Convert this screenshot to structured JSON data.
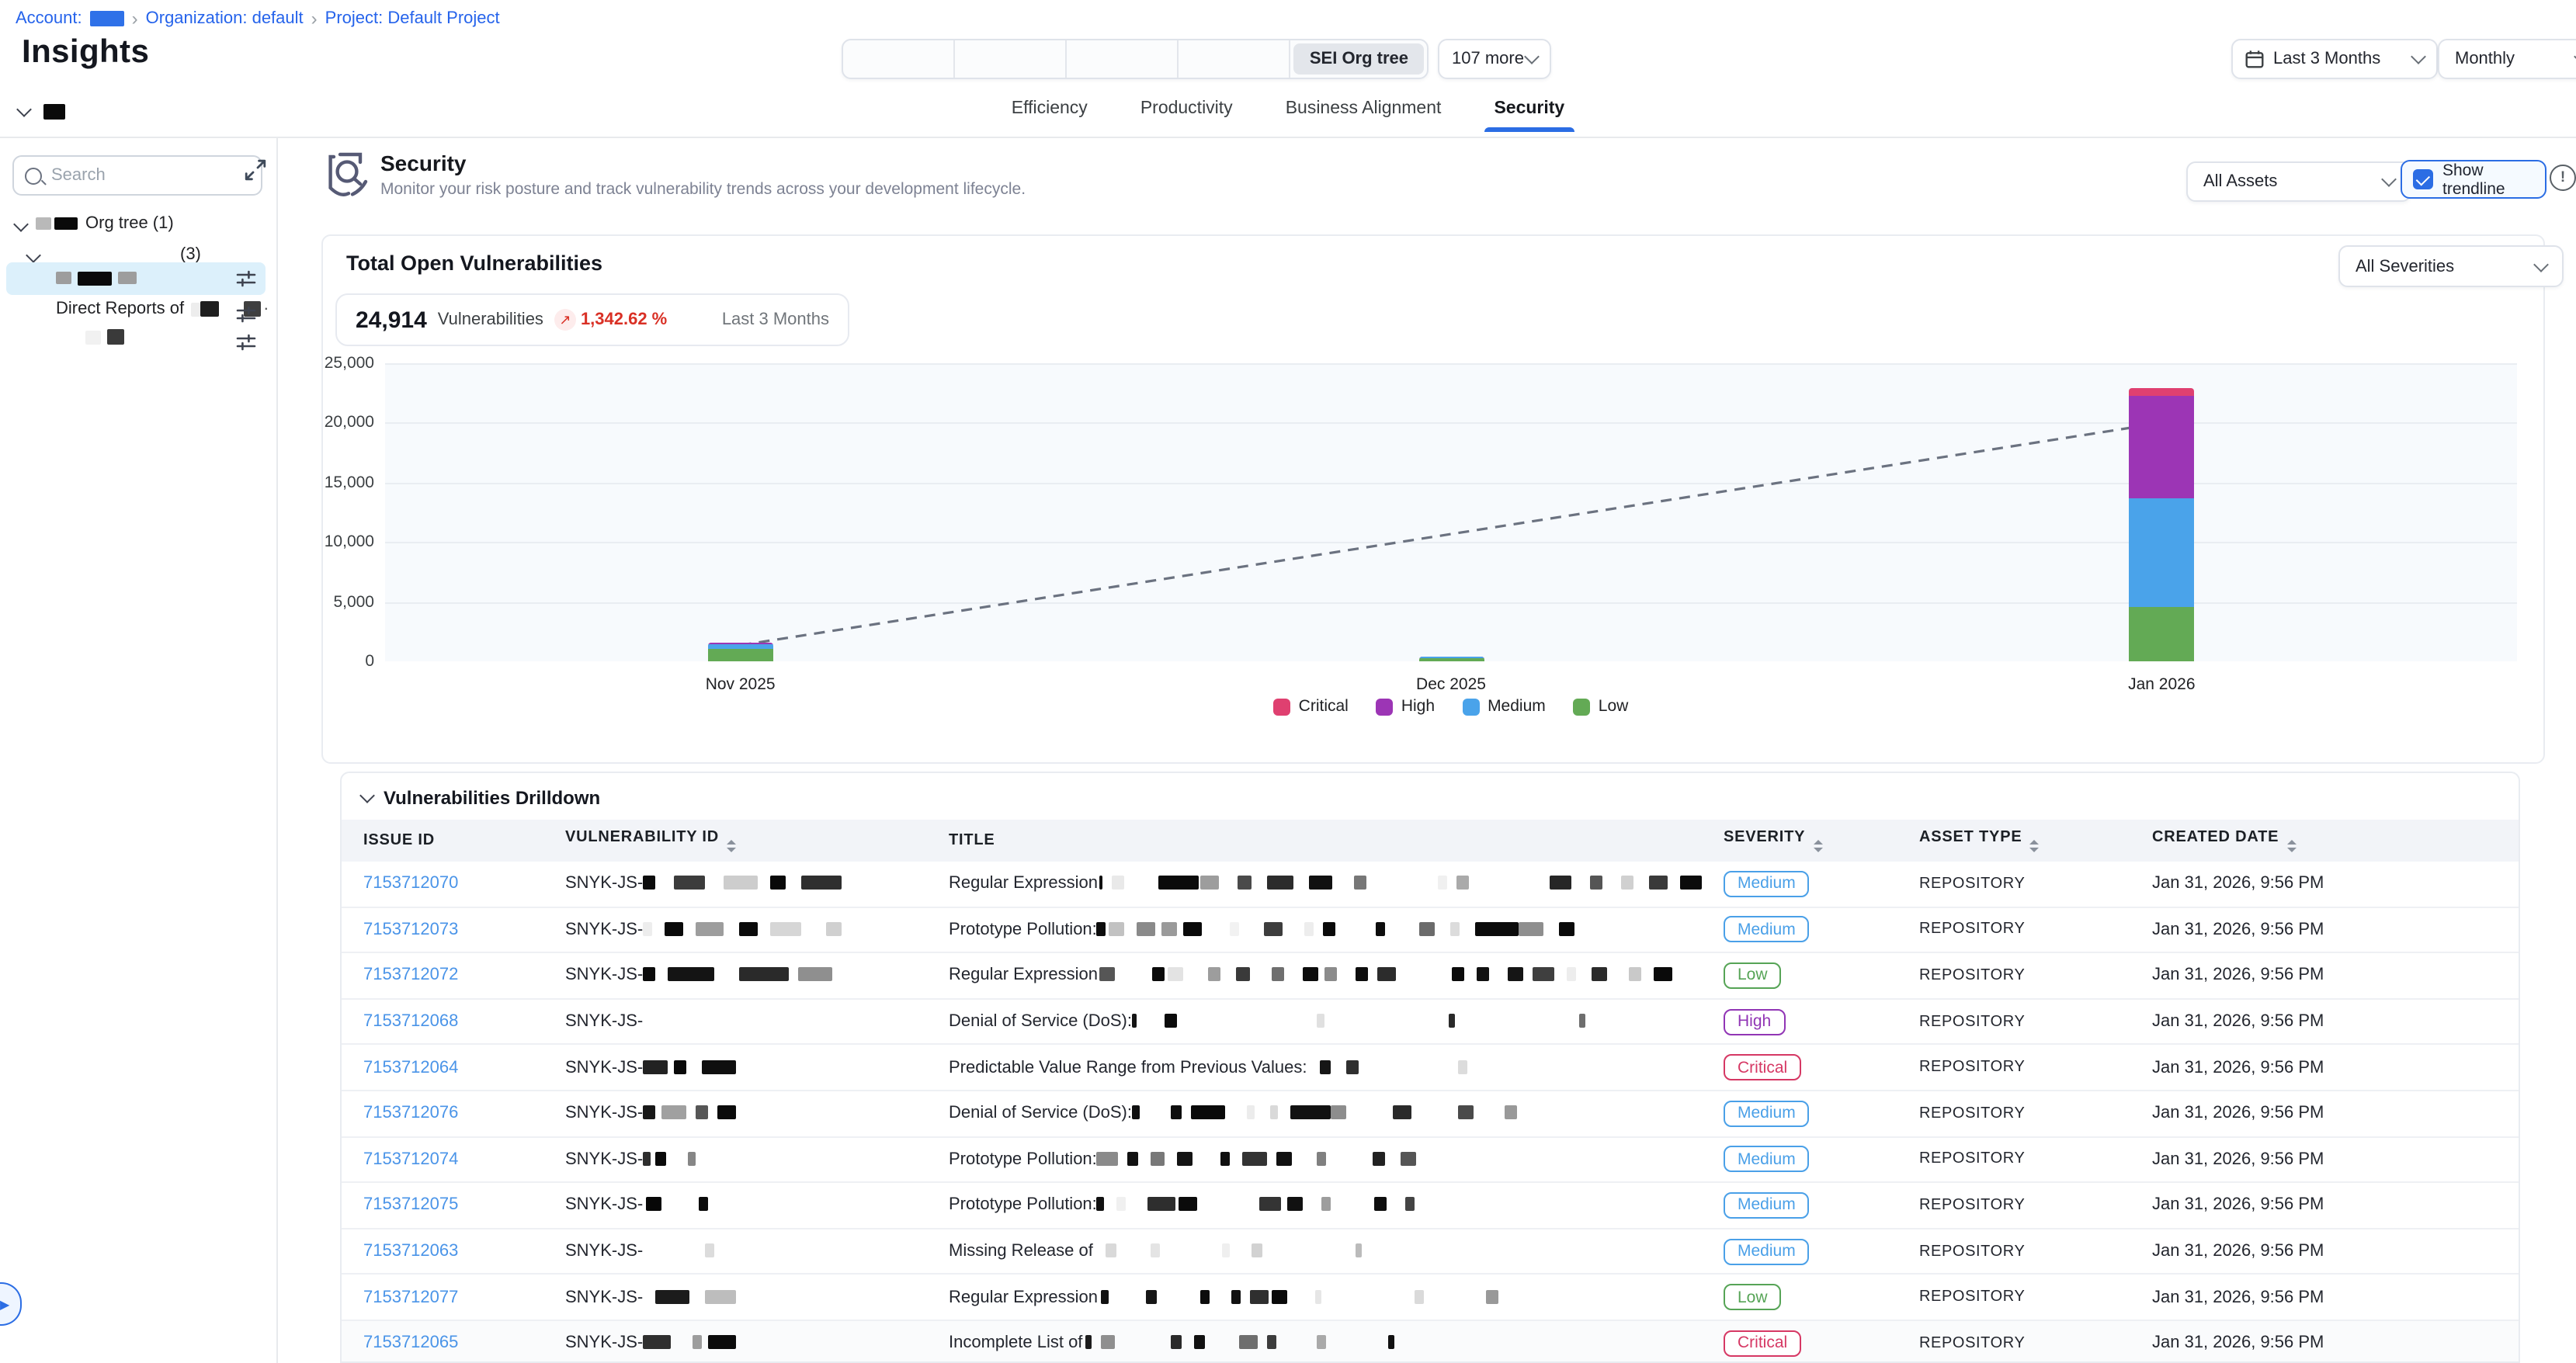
{
  "breadcrumb": {
    "account_label": "Account:",
    "separator": "›",
    "org": "Organization: default",
    "project": "Project: Default Project"
  },
  "page_title": "Insights",
  "org_selector": {
    "empty_segments": 4,
    "active_label": "SEI Org tree",
    "more_label": "107 more"
  },
  "period_filter": {
    "range": "Last 3 Months",
    "granularity": "Monthly"
  },
  "tabs": [
    {
      "label": "Efficiency",
      "active": false
    },
    {
      "label": "Productivity",
      "active": false
    },
    {
      "label": "Business Alignment",
      "active": false
    },
    {
      "label": "Security",
      "active": true
    }
  ],
  "sidebar": {
    "search_placeholder": "Search",
    "root_label": "Org tree (1)",
    "child_count": "(3)",
    "direct_reports_label": "Direct Reports of"
  },
  "security": {
    "title": "Security",
    "subtitle": "Monitor your risk posture and track vulnerability trends across your development lifecycle.",
    "assets_filter": "All Assets",
    "show_trendline_label": "Show trendline",
    "info_glyph": "!"
  },
  "summary": {
    "section_title": "Total Open Vulnerabilities",
    "severity_filter": "All Severities",
    "kpi_value": "24,914",
    "kpi_label": "Vulnerabilities",
    "trend_icon": "↗",
    "kpi_change": "1,342.62 %",
    "kpi_period": "Last 3 Months"
  },
  "chart_data": {
    "type": "bar",
    "stacked": true,
    "title": "Total Open Vulnerabilities",
    "categories": [
      "Nov 2025",
      "Dec 2025",
      "Jan 2026"
    ],
    "series": [
      {
        "name": "Critical",
        "color": "#df4070",
        "values": [
          36,
          16,
          620
        ]
      },
      {
        "name": "High",
        "color": "#9c35b5",
        "values": [
          150,
          52,
          8560
        ]
      },
      {
        "name": "Medium",
        "color": "#4aa3ea",
        "values": [
          380,
          140,
          9180
        ]
      },
      {
        "name": "Low",
        "color": "#63aa55",
        "values": [
          1020,
          240,
          4520
        ]
      }
    ],
    "stack_order_bottom_to_top": [
      "Low",
      "Medium",
      "High",
      "Critical"
    ],
    "bar_totals": [
      1586,
      448,
      22880
    ],
    "ylim": [
      0,
      25000
    ],
    "yticks": [
      0,
      5000,
      10000,
      15000,
      20000,
      25000
    ],
    "grid": true,
    "legend_position": "bottom",
    "legend": [
      "Critical",
      "High",
      "Medium",
      "Low"
    ],
    "trendline": {
      "style": "dashed",
      "from_category": "Nov 2025",
      "from_value": 1350,
      "to_category": "Jan 2026",
      "to_value": 20000
    }
  },
  "drilldown": {
    "title": "Vulnerabilities Drilldown",
    "columns": [
      {
        "label": "ISSUE ID",
        "sortable": false
      },
      {
        "label": "VULNERABILITY ID",
        "sortable": true
      },
      {
        "label": "TITLE",
        "sortable": false
      },
      {
        "label": "SEVERITY",
        "sortable": true
      },
      {
        "label": "ASSET TYPE",
        "sortable": true
      },
      {
        "label": "CREATED DATE",
        "sortable": true
      }
    ],
    "rows": [
      {
        "issue_id": "7153712070",
        "vuln_prefix": "SNYK-JS-",
        "vuln_redact": [
          [
            8,
            "#0c0c0c",
            0
          ],
          [
            20,
            "#3c3c3c",
            12
          ],
          [
            22,
            "#cdcdcd",
            12
          ],
          [
            10,
            "#090909",
            8
          ],
          [
            26,
            "#2f2f2f",
            10
          ]
        ],
        "title_prefix": "Regular Expression",
        "title_redact": [
          [
            2,
            "#111",
            1
          ],
          [
            8,
            "#e9e9e9",
            6
          ],
          [
            26,
            "#0b0b0b",
            22
          ],
          [
            12,
            "#9d9d9d",
            1
          ],
          [
            9,
            "#4a4a4a",
            12
          ],
          [
            17,
            "#2c2c2c",
            10
          ],
          [
            15,
            "#111",
            10
          ],
          [
            8,
            "#777",
            14
          ],
          [
            6,
            "#f0f0f0",
            46
          ],
          [
            8,
            "#aaa",
            6
          ],
          [
            14,
            "#262626",
            52
          ],
          [
            8,
            "#555",
            12
          ],
          [
            8,
            "#d0d0d0",
            12
          ],
          [
            12,
            "#3a3a3a",
            10
          ],
          [
            14,
            "#0c0c0c",
            8
          ]
        ],
        "severity": "Medium",
        "asset_type": "REPOSITORY",
        "created": "Jan 31, 2026, 9:56 PM"
      },
      {
        "issue_id": "7153712073",
        "vuln_prefix": "SNYK-JS-",
        "vuln_redact": [
          [
            6,
            "#ededed",
            0
          ],
          [
            12,
            "#0a0a0a",
            8
          ],
          [
            18,
            "#9d9d9d",
            8
          ],
          [
            12,
            "#0b0b0b",
            10
          ],
          [
            20,
            "#d6d6d6",
            8
          ],
          [
            10,
            "#d0d0d0",
            16
          ]
        ],
        "title_prefix": "Prototype Pollution:",
        "title_redact": [
          [
            6,
            "#0d0d0d",
            0
          ],
          [
            10,
            "#c2c2c2",
            2
          ],
          [
            12,
            "#8a8a8a",
            8
          ],
          [
            10,
            "#9a9a9a",
            4
          ],
          [
            12,
            "#0a0a0a",
            4
          ],
          [
            6,
            "#f2f2f2",
            18
          ],
          [
            12,
            "#3d3d3d",
            16
          ],
          [
            6,
            "#ededed",
            14
          ],
          [
            8,
            "#0a0a0a",
            6
          ],
          [
            6,
            "#0d0d0d",
            26
          ],
          [
            10,
            "#6b6b6b",
            22
          ],
          [
            6,
            "#dcdcdc",
            10
          ],
          [
            28,
            "#0b0b0b",
            10
          ],
          [
            16,
            "#8e8e8e",
            0
          ],
          [
            10,
            "#0a0a0a",
            10
          ]
        ],
        "severity": "Medium",
        "asset_type": "REPOSITORY",
        "created": "Jan 31, 2026, 9:56 PM"
      },
      {
        "issue_id": "7153712072",
        "vuln_prefix": "SNYK-JS-",
        "vuln_redact": [
          [
            8,
            "#0b0b0b",
            0
          ],
          [
            30,
            "#141414",
            8
          ],
          [
            32,
            "#2a2a2a",
            16
          ],
          [
            22,
            "#8f8f8f",
            6
          ]
        ],
        "title_prefix": "Regular Expression",
        "title_redact": [
          [
            10,
            "#565656",
            1
          ],
          [
            8,
            "#0b0b0b",
            24
          ],
          [
            10,
            "#e3e3e3",
            2
          ],
          [
            8,
            "#9d9d9d",
            16
          ],
          [
            9,
            "#3a3a3a",
            10
          ],
          [
            8,
            "#6f6f6f",
            14
          ],
          [
            10,
            "#0c0c0c",
            12
          ],
          [
            8,
            "#8b8b8b",
            4
          ],
          [
            8,
            "#0d0d0d",
            12
          ],
          [
            12,
            "#2c2c2c",
            6
          ],
          [
            8,
            "#0b0b0b",
            36
          ],
          [
            8,
            "#111",
            8
          ],
          [
            10,
            "#151515",
            12
          ],
          [
            14,
            "#3f3f3f",
            6
          ],
          [
            6,
            "#ededed",
            8
          ],
          [
            10,
            "#2b2b2b",
            10
          ],
          [
            8,
            "#c9c9c9",
            14
          ],
          [
            12,
            "#0a0a0a",
            8
          ]
        ],
        "severity": "Low",
        "asset_type": "REPOSITORY",
        "created": "Jan 31, 2026, 9:56 PM"
      },
      {
        "issue_id": "7153712068",
        "vuln_prefix": "SNYK-JS-",
        "vuln_redact": [],
        "title_prefix": "Denial of Service (DoS):",
        "title_redact": [
          [
            3,
            "#141414",
            0
          ],
          [
            8,
            "#0b0b0b",
            18
          ],
          [
            5,
            "#e0e0e0",
            90
          ],
          [
            4,
            "#2a2a2a",
            80
          ],
          [
            4,
            "#6e6e6e",
            80
          ]
        ],
        "severity": "High",
        "asset_type": "REPOSITORY",
        "created": "Jan 31, 2026, 9:56 PM"
      },
      {
        "issue_id": "7153712064",
        "vuln_prefix": "SNYK-JS-",
        "vuln_redact": [
          [
            16,
            "#222",
            0
          ],
          [
            8,
            "#0a0a0a",
            4
          ],
          [
            22,
            "#0f0f0f",
            10
          ]
        ],
        "title_prefix": "Predictable Value Range from Previous Values:",
        "title_redact": [
          [
            7,
            "#161616",
            8
          ],
          [
            8,
            "#2f2f2f",
            10
          ],
          [
            6,
            "#dcdcdc",
            64
          ]
        ],
        "severity": "Critical",
        "asset_type": "REPOSITORY",
        "created": "Jan 31, 2026, 9:56 PM"
      },
      {
        "issue_id": "7153712076",
        "vuln_prefix": "SNYK-JS-",
        "vuln_redact": [
          [
            8,
            "#181818",
            0
          ],
          [
            16,
            "#a0a0a0",
            4
          ],
          [
            8,
            "#565656",
            6
          ],
          [
            12,
            "#0b0b0b",
            6
          ]
        ],
        "title_prefix": "Denial of Service (DoS):",
        "title_redact": [
          [
            5,
            "#101010",
            0
          ],
          [
            7,
            "#0e0e0e",
            20
          ],
          [
            22,
            "#0a0a0a",
            6
          ],
          [
            5,
            "#ececec",
            14
          ],
          [
            5,
            "#d9d9d9",
            10
          ],
          [
            26,
            "#111",
            8
          ],
          [
            10,
            "#8d8d8d",
            0
          ],
          [
            12,
            "#2a2a2a",
            30
          ],
          [
            10,
            "#4a4a4a",
            30
          ],
          [
            8,
            "#999",
            20
          ]
        ],
        "severity": "Medium",
        "asset_type": "REPOSITORY",
        "created": "Jan 31, 2026, 9:56 PM"
      },
      {
        "issue_id": "7153712074",
        "vuln_prefix": "SNYK-JS-",
        "vuln_redact": [
          [
            5,
            "#2e2e2e",
            0
          ],
          [
            7,
            "#0a0a0a",
            3
          ],
          [
            5,
            "#868686",
            14
          ]
        ],
        "title_prefix": "Prototype Pollution:",
        "title_redact": [
          [
            14,
            "#8a8a8a",
            0
          ],
          [
            7,
            "#111",
            6
          ],
          [
            9,
            "#787878",
            8
          ],
          [
            10,
            "#141414",
            8
          ],
          [
            6,
            "#0f0f0f",
            18
          ],
          [
            16,
            "#333",
            8
          ],
          [
            10,
            "#111",
            6
          ],
          [
            6,
            "#808080",
            16
          ],
          [
            8,
            "#222",
            30
          ],
          [
            10,
            "#555",
            10
          ]
        ],
        "severity": "Medium",
        "asset_type": "REPOSITORY",
        "created": "Jan 31, 2026, 9:56 PM"
      },
      {
        "issue_id": "7153712075",
        "vuln_prefix": "SNYK-JS-",
        "vuln_redact": [
          [
            10,
            "#070707",
            2
          ],
          [
            6,
            "#0b0b0b",
            24
          ]
        ],
        "title_prefix": "Prototype Pollution:",
        "title_redact": [
          [
            5,
            "#111",
            0
          ],
          [
            6,
            "#f0f0f0",
            8
          ],
          [
            18,
            "#2e2e2e",
            14
          ],
          [
            12,
            "#0b0b0b",
            2
          ],
          [
            14,
            "#343434",
            40
          ],
          [
            10,
            "#111",
            4
          ],
          [
            6,
            "#9d9d9d",
            12
          ],
          [
            8,
            "#0e0e0e",
            28
          ],
          [
            6,
            "#444",
            12
          ]
        ],
        "severity": "Medium",
        "asset_type": "REPOSITORY",
        "created": "Jan 31, 2026, 9:56 PM"
      },
      {
        "issue_id": "7153712063",
        "vuln_prefix": "SNYK-JS-",
        "vuln_redact": [
          [
            6,
            "#dcdcdc",
            40
          ]
        ],
        "title_prefix": "Missing Release of",
        "title_redact": [
          [
            7,
            "#d9d9d9",
            8
          ],
          [
            6,
            "#e4e4e4",
            22
          ],
          [
            5,
            "#efefef",
            40
          ],
          [
            7,
            "#d2d2d2",
            14
          ],
          [
            4,
            "#bbb",
            60
          ]
        ],
        "severity": "Medium",
        "asset_type": "REPOSITORY",
        "created": "Jan 31, 2026, 9:56 PM"
      },
      {
        "issue_id": "7153712077",
        "vuln_prefix": "SNYK-JS-",
        "vuln_redact": [
          [
            22,
            "#1c1c1c",
            8
          ],
          [
            20,
            "#bdbdbd",
            10
          ]
        ],
        "title_prefix": "Regular Expression",
        "title_redact": [
          [
            5,
            "#111",
            2
          ],
          [
            7,
            "#161616",
            24
          ],
          [
            6,
            "#0c0c0c",
            28
          ],
          [
            6,
            "#111",
            14
          ],
          [
            12,
            "#2f2f2f",
            6
          ],
          [
            10,
            "#0a0a0a",
            2
          ],
          [
            4,
            "#e6e6e6",
            18
          ],
          [
            6,
            "#dadada",
            60
          ],
          [
            8,
            "#999",
            40
          ]
        ],
        "severity": "Low",
        "asset_type": "REPOSITORY",
        "created": "Jan 31, 2026, 9:56 PM"
      },
      {
        "issue_id": "7153712065",
        "vuln_prefix": "SNYK-JS-",
        "vuln_redact": [
          [
            18,
            "#2f2f2f",
            0
          ],
          [
            6,
            "#9d9d9d",
            14
          ],
          [
            18,
            "#0b0b0b",
            4
          ]
        ],
        "title_prefix": "Incomplete List of",
        "title_redact": [
          [
            4,
            "#1d1d1d",
            2
          ],
          [
            9,
            "#8f8f8f",
            6
          ],
          [
            7,
            "#2a2a2a",
            36
          ],
          [
            7,
            "#111",
            8
          ],
          [
            12,
            "#6e6e6e",
            22
          ],
          [
            6,
            "#3c3c3c",
            6
          ],
          [
            6,
            "#a9a9a9",
            26
          ],
          [
            4,
            "#111",
            40
          ]
        ],
        "severity": "Critical",
        "asset_type": "REPOSITORY",
        "created": "Jan 31, 2026, 9:56 PM"
      }
    ]
  },
  "colors": {
    "accent_blue": "#2b6de4",
    "link_blue": "#4a94e8",
    "kpi_negative": "#d93025",
    "severity": {
      "Critical": "#d63864",
      "High": "#9135b5",
      "Medium": "#4aa0e8",
      "Low": "#56a456"
    }
  }
}
